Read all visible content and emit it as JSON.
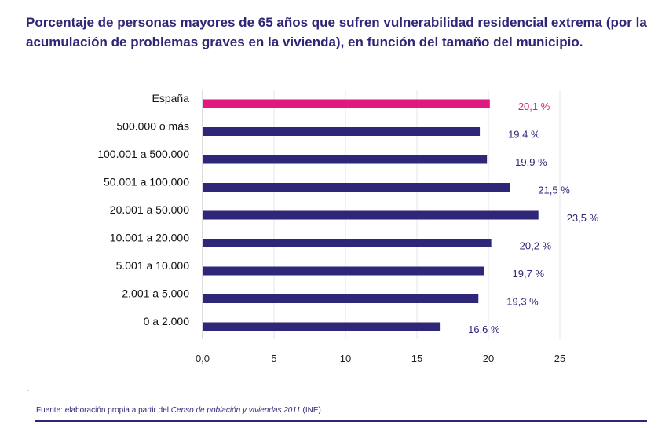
{
  "title": "Porcentaje de personas mayores de 65 años que sufren vulnerabilidad residencial extrema (por la acumulación de problemas graves en la vivienda), en función del tamaño del municipio.",
  "source": {
    "label": "Fuente:",
    "text_before": "elaboración propia a partir del ",
    "text_italic": "Censo de población y viviendas 2011",
    "text_after": " (INE)."
  },
  "colors": {
    "highlight": "#e0187f",
    "bar": "#2e2677",
    "text": "#2e2677",
    "grid": "#e6e6ee"
  },
  "chart_data": {
    "type": "bar",
    "orientation": "horizontal",
    "categories": [
      "España",
      "500.000 o más",
      "100.001 a 500.000",
      "50.001 a 100.000",
      "20.001 a 50.000",
      "10.001 a 20.000",
      "5.001 a 10.000",
      "2.001 a 5.000",
      "0 a 2.000"
    ],
    "values": [
      20.1,
      19.4,
      19.9,
      21.5,
      23.5,
      20.2,
      19.7,
      19.3,
      16.6
    ],
    "value_labels": [
      "20,1 %",
      "19,4 %",
      "19,9 %",
      "21,5 %",
      "23,5 %",
      "20,2 %",
      "19,7 %",
      "19,3 %",
      "16,6 %"
    ],
    "highlight_index": 0,
    "xlim": [
      0,
      25
    ],
    "xticks": [
      0,
      5,
      10,
      15,
      20,
      25
    ],
    "xtick_labels": [
      "0,0",
      "5",
      "10",
      "15",
      "20",
      "25"
    ],
    "grid": true,
    "legend": "none"
  }
}
